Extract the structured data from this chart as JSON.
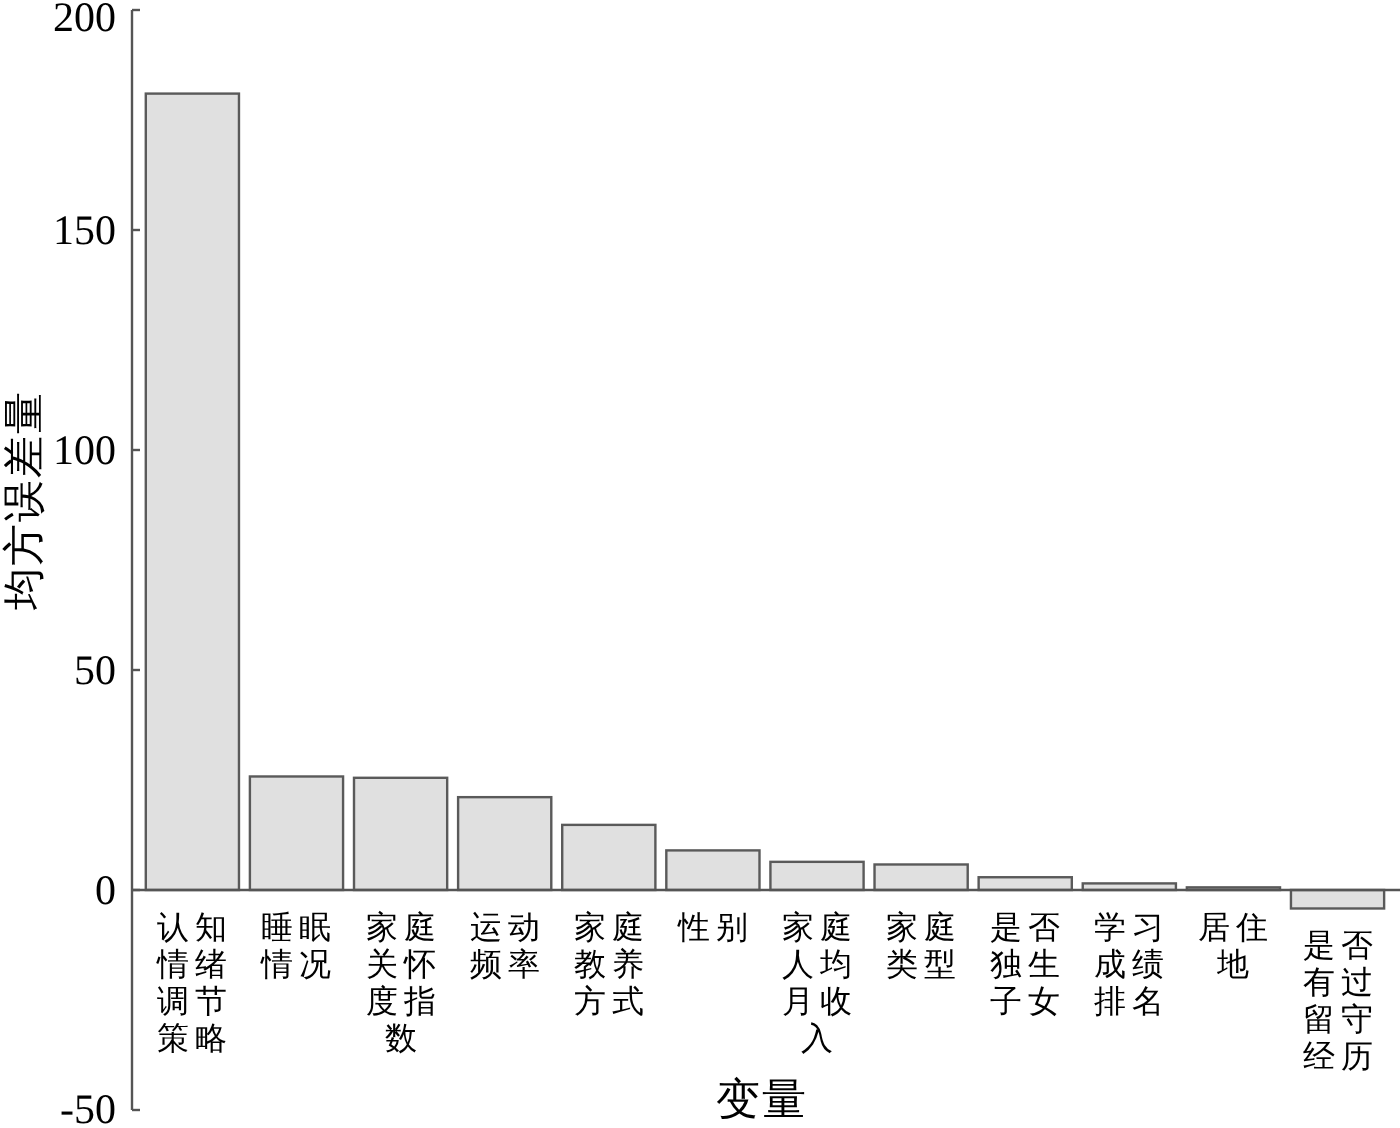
{
  "chart_data": {
    "type": "bar",
    "xlabel": "变量",
    "ylabel": "均方误差量",
    "categories": [
      "认知情绪调节策略",
      "睡眠情况",
      "家庭关怀度指数",
      "运动频率",
      "家庭教养方式",
      "性别",
      "家庭人均月收入",
      "家庭类型",
      "是否独生子女",
      "学习成绩排名",
      "居住地",
      "是否有过留守经历"
    ],
    "values": [
      181,
      25.8,
      25.5,
      21.1,
      14.8,
      9.0,
      6.4,
      5.8,
      2.9,
      1.5,
      0.6,
      -4.2
    ],
    "color": "#e0e0e0",
    "ylim": [
      -50,
      200
    ],
    "yticks": [
      -50,
      0,
      50,
      100,
      150,
      200
    ]
  }
}
